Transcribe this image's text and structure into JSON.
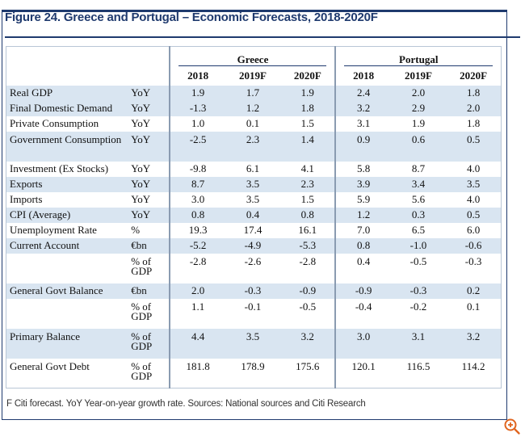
{
  "figure": {
    "title": "Figure 24. Greece and Portugal – Economic Forecasts, 2018-2020F",
    "footnote": "F Citi forecast. YoY Year-on-year growth rate. Sources: National sources and Citi Research"
  },
  "groups": {
    "greece": "Greece",
    "portugal": "Portugal"
  },
  "years": [
    "2018",
    "2019F",
    "2020F",
    "2018",
    "2019F",
    "2020F"
  ],
  "rows": [
    {
      "label": "Real GDP",
      "unit": "YoY",
      "values": [
        "1.9",
        "1.7",
        "1.9",
        "2.4",
        "2.0",
        "1.8"
      ],
      "shade": true,
      "tall": false
    },
    {
      "label": "Final Domestic Demand",
      "unit": "YoY",
      "values": [
        "-1.3",
        "1.2",
        "1.8",
        "3.2",
        "2.9",
        "2.0"
      ],
      "shade": true,
      "tall": false
    },
    {
      "label": "Private Consumption",
      "unit": "YoY",
      "values": [
        "1.0",
        "0.1",
        "1.5",
        "3.1",
        "1.9",
        "1.8"
      ],
      "shade": false,
      "tall": false
    },
    {
      "label": "Government Consumption",
      "unit": "YoY",
      "values": [
        "-2.5",
        "2.3",
        "1.4",
        "0.9",
        "0.6",
        "0.5"
      ],
      "shade": true,
      "tall": true
    },
    {
      "label": "Investment (Ex Stocks)",
      "unit": "YoY",
      "values": [
        "-9.8",
        "6.1",
        "4.1",
        "5.8",
        "8.7",
        "4.0"
      ],
      "shade": false,
      "tall": false
    },
    {
      "label": "Exports",
      "unit": "YoY",
      "values": [
        "8.7",
        "3.5",
        "2.3",
        "3.9",
        "3.4",
        "3.5"
      ],
      "shade": true,
      "tall": false
    },
    {
      "label": "Imports",
      "unit": "YoY",
      "values": [
        "3.0",
        "3.5",
        "1.5",
        "5.9",
        "5.6",
        "4.0"
      ],
      "shade": false,
      "tall": false
    },
    {
      "label": "CPI (Average)",
      "unit": "YoY",
      "values": [
        "0.8",
        "0.4",
        "0.8",
        "1.2",
        "0.3",
        "0.5"
      ],
      "shade": true,
      "tall": false
    },
    {
      "label": "Unemployment Rate",
      "unit": "%",
      "values": [
        "19.3",
        "17.4",
        "16.1",
        "7.0",
        "6.5",
        "6.0"
      ],
      "shade": false,
      "tall": false
    },
    {
      "label": "Current Account",
      "unit": "€bn",
      "values": [
        "-5.2",
        "-4.9",
        "-5.3",
        "0.8",
        "-1.0",
        "-0.6"
      ],
      "shade": true,
      "tall": false
    },
    {
      "label": "",
      "unit": "% of GDP",
      "values": [
        "-2.8",
        "-2.6",
        "-2.8",
        "0.4",
        "-0.5",
        "-0.3"
      ],
      "shade": false,
      "tall": true
    },
    {
      "label": "General Govt Balance",
      "unit": "€bn",
      "values": [
        "2.0",
        "-0.3",
        "-0.9",
        "-0.9",
        "-0.3",
        "0.2"
      ],
      "shade": true,
      "tall": false
    },
    {
      "label": "",
      "unit": "% of GDP",
      "values": [
        "1.1",
        "-0.1",
        "-0.5",
        "-0.4",
        "-0.2",
        "0.1"
      ],
      "shade": false,
      "tall": true
    },
    {
      "label": "Primary Balance",
      "unit": "% of GDP",
      "values": [
        "4.4",
        "3.5",
        "3.2",
        "3.0",
        "3.1",
        "3.2"
      ],
      "shade": true,
      "tall": true
    },
    {
      "label": "General Govt Debt",
      "unit": "% of GDP",
      "values": [
        "181.8",
        "178.9",
        "175.6",
        "120.1",
        "116.5",
        "114.2"
      ],
      "shade": false,
      "tall": true
    }
  ],
  "icons": {
    "zoom": "zoom-in-icon"
  },
  "colors": {
    "accent": "#1f3a6e",
    "shade": "#d9e5f1"
  }
}
